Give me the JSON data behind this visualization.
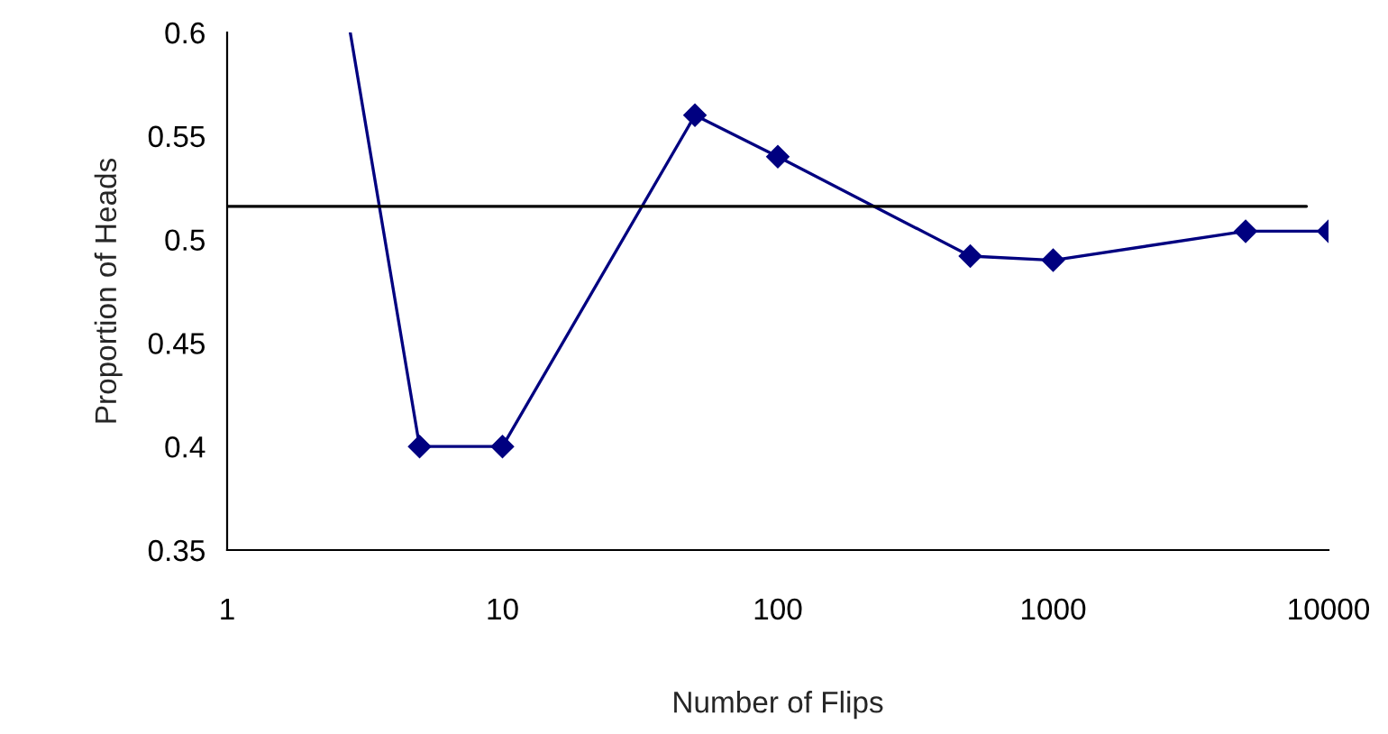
{
  "chart_data": {
    "type": "line",
    "xlabel": "Number of Flips",
    "ylabel": "Proportion of Heads",
    "x": [
      5,
      10,
      50,
      100,
      500,
      1000,
      5000,
      10000
    ],
    "series": [
      {
        "color": "#000080",
        "values": [
          0.4,
          0.4,
          0.56,
          0.54,
          0.492,
          0.49,
          0.504,
          0.504
        ]
      },
      {
        "color": "#000080",
        "x": [
          2.8,
          5
        ],
        "values": [
          0.6,
          0.4
        ],
        "marker": "none"
      }
    ],
    "log": "x",
    "xlim": [
      1,
      10000
    ],
    "xticks": [
      1,
      10,
      100,
      1000,
      10000
    ],
    "ylim": [
      0.35,
      0.6
    ],
    "yticks": [
      0.35,
      0.4,
      0.45,
      0.5,
      0.55,
      0.6
    ],
    "ref_lines": [
      {
        "axis": "y",
        "value": 0.516,
        "color": "#000000"
      }
    ],
    "marker": "diamond",
    "line_style": "solid",
    "grid": false,
    "legend": false
  }
}
